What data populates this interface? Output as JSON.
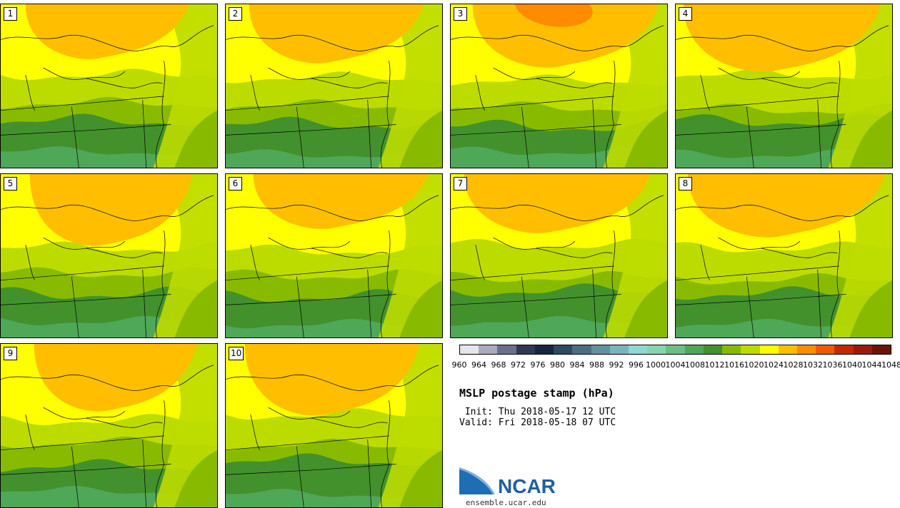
{
  "panels": [
    {
      "label": "1",
      "variant": 0
    },
    {
      "label": "2",
      "variant": 1
    },
    {
      "label": "3",
      "variant": 2
    },
    {
      "label": "4",
      "variant": 3
    },
    {
      "label": "5",
      "variant": 4
    },
    {
      "label": "6",
      "variant": 5
    },
    {
      "label": "7",
      "variant": 6
    },
    {
      "label": "8",
      "variant": 7
    },
    {
      "label": "9",
      "variant": 8
    },
    {
      "label": "10",
      "variant": 9
    }
  ],
  "colorbar": {
    "levels": [
      "960",
      "964",
      "968",
      "972",
      "976",
      "980",
      "984",
      "988",
      "992",
      "996",
      "1000",
      "1004",
      "1008",
      "1012",
      "1016",
      "1020",
      "1024",
      "1028",
      "1032",
      "1036",
      "1040",
      "1044",
      "1048"
    ],
    "colors": [
      "#e4e6ea",
      "#a9abbd",
      "#6a7088",
      "#2e3a52",
      "#172640",
      "#2c4a62",
      "#4d6d80",
      "#6292a0",
      "#7cb4bc",
      "#8ed9d0",
      "#86d6b2",
      "#6cbf82",
      "#4fa758",
      "#43912c",
      "#88bb00",
      "#bcdc00",
      "#ffff00",
      "#ffbf00",
      "#ff8c00",
      "#f05a00",
      "#c42800",
      "#9c1a0c",
      "#6a1408"
    ]
  },
  "legend": {
    "title": "MSLP postage stamp (hPa)",
    "init": " Init: Thu 2018-05-17 12 UTC",
    "valid": "Valid: Fri 2018-05-18 07 UTC"
  },
  "branding": {
    "logo_name": "NCAR",
    "site": "ensemble.ucar.edu"
  }
}
